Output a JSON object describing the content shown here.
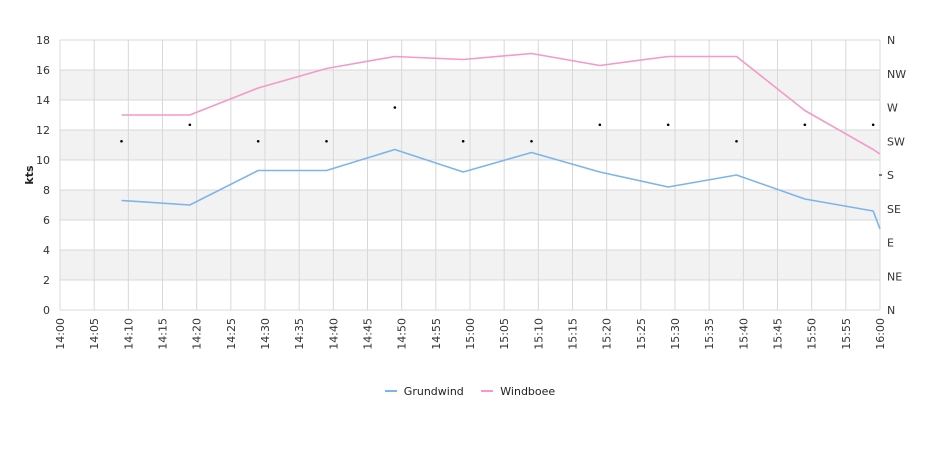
{
  "chart_data": {
    "type": "line",
    "xlabel": "",
    "ylabel": "kts",
    "ylim": [
      0,
      18
    ],
    "y_ticks": [
      "0",
      "2",
      "4",
      "6",
      "8",
      "10",
      "12",
      "14",
      "16",
      "18"
    ],
    "x_ticks": [
      "14:00",
      "14:05",
      "14:10",
      "14:15",
      "14:20",
      "14:25",
      "14:30",
      "14:35",
      "14:40",
      "14:45",
      "14:50",
      "14:55",
      "15:00",
      "15:05",
      "15:10",
      "15:15",
      "15:20",
      "15:25",
      "15:30",
      "15:35",
      "15:40",
      "15:45",
      "15:50",
      "15:55",
      "16:00"
    ],
    "right_axis_labels": [
      "N",
      "NE",
      "E",
      "SE",
      "S",
      "SW",
      "W",
      "NW",
      "N"
    ],
    "grid": true,
    "legend_position": "bottom",
    "series": [
      {
        "name": "Grundwind",
        "color": "#7cb5ec",
        "x": [
          "14:09",
          "14:19",
          "14:29",
          "14:39",
          "14:49",
          "14:59",
          "15:09",
          "15:19",
          "15:29",
          "15:39",
          "15:49",
          "15:59",
          "16:00"
        ],
        "values": [
          7.3,
          7.0,
          9.3,
          9.3,
          10.7,
          9.2,
          10.5,
          9.2,
          8.2,
          9.0,
          7.4,
          6.6,
          5.4
        ]
      },
      {
        "name": "Windboee",
        "color": "#f39ac6",
        "x": [
          "14:09",
          "14:19",
          "14:29",
          "14:39",
          "14:49",
          "14:59",
          "15:09",
          "15:19",
          "15:29",
          "15:39",
          "15:49",
          "15:59",
          "16:00"
        ],
        "values": [
          13.0,
          13.0,
          14.8,
          16.1,
          16.9,
          16.7,
          17.1,
          16.3,
          16.9,
          16.9,
          13.3,
          10.7,
          10.4
        ]
      }
    ],
    "direction_points": {
      "x": [
        "14:09",
        "14:19",
        "14:29",
        "14:39",
        "14:49",
        "14:59",
        "15:09",
        "15:19",
        "15:29",
        "15:39",
        "15:49",
        "15:59"
      ],
      "degrees": [
        225,
        247,
        225,
        225,
        270,
        225,
        225,
        247,
        247,
        225,
        247,
        247
      ]
    }
  }
}
